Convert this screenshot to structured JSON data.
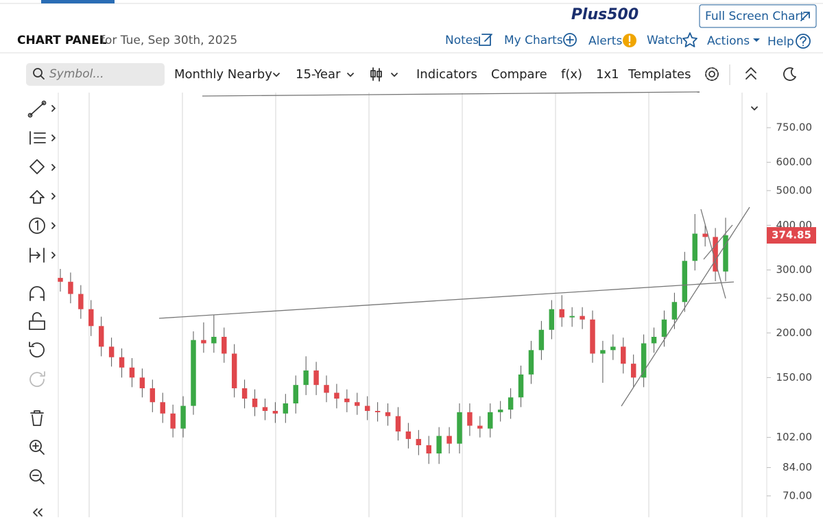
{
  "header": {
    "logo": "Plus500",
    "fullscreen": "Full Screen Chart",
    "title": "CHART PANEL",
    "date": "for Tue, Sep 30th, 2025",
    "menu": [
      "Notes",
      "My Charts",
      "Alerts",
      "Watch",
      "Actions",
      "Help"
    ]
  },
  "toolbar": {
    "symbol_placeholder": "Symbol...",
    "items": [
      "Monthly Nearby",
      "15-Year",
      "Indicators",
      "Compare",
      "f(x)",
      "1x1",
      "Templates"
    ]
  },
  "chart_data": {
    "type": "candlestick",
    "open": [
      285,
      278,
      257,
      233,
      209,
      183,
      171,
      160,
      150,
      140,
      128,
      119,
      108,
      125,
      191,
      187,
      195,
      175,
      140,
      131,
      124,
      121,
      119,
      127,
      143,
      157,
      143,
      136,
      131,
      128,
      125,
      121,
      120,
      117,
      106,
      101,
      97,
      92,
      103,
      98,
      120,
      110,
      108,
      120,
      122,
      132,
      153,
      179,
      204,
      233,
      221,
      223,
      218,
      175,
      179,
      183,
      164,
      150,
      187,
      195,
      218,
      244,
      318,
      379,
      371,
      297
    ],
    "high": [
      302,
      295,
      272,
      247,
      222,
      194,
      181,
      170,
      159,
      148,
      136,
      126,
      133,
      202,
      214,
      225,
      207,
      186,
      148,
      139,
      131,
      128,
      135,
      152,
      172,
      166,
      152,
      144,
      139,
      136,
      133,
      128,
      127,
      124,
      112,
      107,
      103,
      109,
      109,
      127,
      127,
      117,
      127,
      129,
      140,
      162,
      190,
      216,
      247,
      255,
      236,
      236,
      231,
      190,
      198,
      194,
      174,
      198,
      207,
      231,
      259,
      337,
      430,
      400,
      393,
      420
    ],
    "low": [
      261,
      242,
      219,
      196,
      172,
      161,
      150,
      141,
      132,
      120,
      112,
      102,
      102,
      118,
      176,
      176,
      165,
      132,
      123,
      117,
      114,
      112,
      112,
      119,
      134,
      134,
      128,
      123,
      120,
      118,
      114,
      113,
      110,
      100,
      95,
      91,
      86,
      86,
      92,
      92,
      103,
      102,
      102,
      113,
      115,
      124,
      144,
      168,
      192,
      208,
      208,
      205,
      165,
      145,
      168,
      154,
      141,
      141,
      176,
      183,
      205,
      229,
      299,
      349,
      279,
      279
    ],
    "close": [
      278,
      257,
      233,
      209,
      183,
      171,
      160,
      150,
      140,
      128,
      119,
      108,
      125,
      191,
      187,
      195,
      175,
      140,
      131,
      124,
      121,
      119,
      127,
      143,
      157,
      143,
      136,
      131,
      128,
      125,
      121,
      120,
      117,
      106,
      101,
      97,
      92,
      103,
      98,
      120,
      110,
      108,
      120,
      122,
      132,
      153,
      179,
      204,
      233,
      221,
      223,
      218,
      175,
      179,
      183,
      164,
      150,
      187,
      195,
      218,
      244,
      318,
      379,
      371,
      297,
      375
    ],
    "colors": {
      "up": "#3aa845",
      "down": "#e0474c"
    },
    "log_scale": true,
    "ylim": [
      61,
      940
    ],
    "yticks": [
      {
        "value": 70,
        "label": "70.00"
      },
      {
        "value": 84,
        "label": "84.00"
      },
      {
        "value": 102,
        "label": "102.00"
      },
      {
        "value": 150,
        "label": "150.00"
      },
      {
        "value": 200,
        "label": "200.00"
      },
      {
        "value": 250,
        "label": "250.00"
      },
      {
        "value": 300,
        "label": "300.00"
      },
      {
        "value": 400,
        "label": "400.00"
      },
      {
        "value": 500,
        "label": "500.00"
      },
      {
        "value": 600,
        "label": "600.00"
      },
      {
        "value": 750,
        "label": "750.00"
      }
    ],
    "last_price": 374.85,
    "last_price_color": "#e0474c"
  }
}
